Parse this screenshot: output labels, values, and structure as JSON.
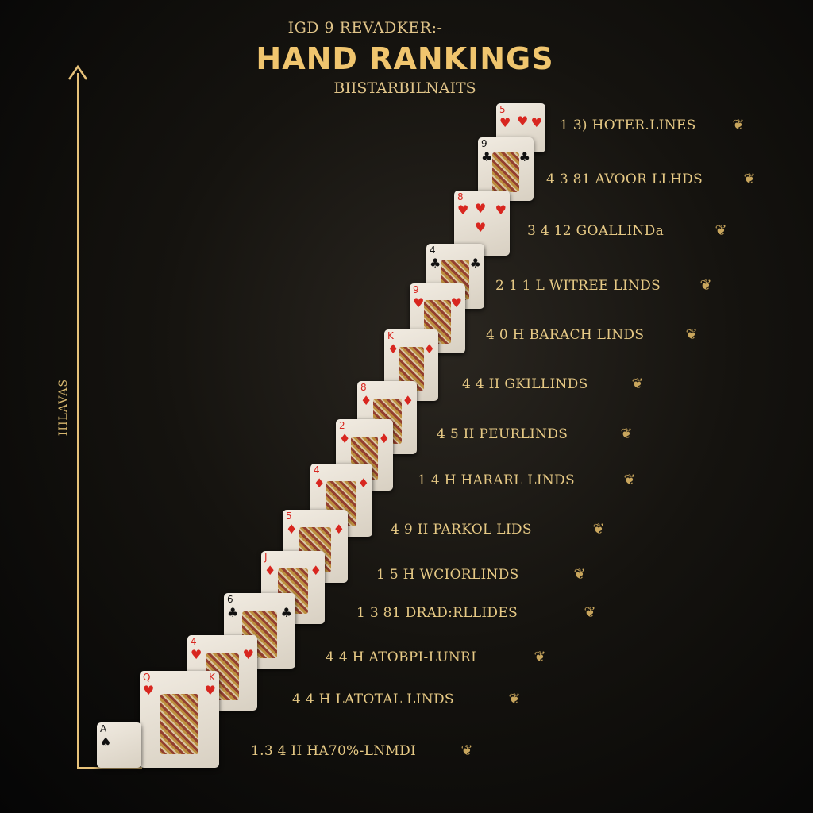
{
  "header": {
    "supertitle": "IGD 9 REVADKER:-",
    "title": "HAND RANKINGS",
    "subtitle": "BIISTARBILNAITS"
  },
  "axis": {
    "y_label": "IIILAVAS"
  },
  "colors": {
    "background": "#0a0908",
    "gold": "#f0c56e",
    "card": "#ece5da",
    "red": "#d8261f"
  },
  "rows": [
    {
      "label": "1  3)  HOTER.LINES",
      "icon": "ornate-emblem"
    },
    {
      "label": "4  3  81 AVOOR LLHDS",
      "icon": "ornate-emblem"
    },
    {
      "label": "3  4  12  GOALLINDa",
      "icon": "ornate-emblem"
    },
    {
      "label": "2  1  1  L WITREE LINDS",
      "icon": "ornate-emblem"
    },
    {
      "label": "4  0  H BARACH LINDS",
      "icon": "ornate-emblem"
    },
    {
      "label": "4  4  II  GKILLINDS",
      "icon": "ornate-emblem"
    },
    {
      "label": "4  5  II PEURLINDS",
      "icon": "ornate-emblem"
    },
    {
      "label": "1  4  H  HARARL LINDS",
      "icon": "ornate-emblem"
    },
    {
      "label": "4  9  II  PARKOL LIDS",
      "icon": "ornate-emblem"
    },
    {
      "label": "1  5  H  WCIORLINDS",
      "icon": "ornate-emblem"
    },
    {
      "label": "1  3  81 DRAD:RLLIDES",
      "icon": "ornate-emblem"
    },
    {
      "label": "4  4  H  ATOBPI-LUNRI",
      "icon": "ornate-emblem"
    },
    {
      "label": "4  4  H LATOTAL LINDS",
      "icon": "ornate-emblem"
    },
    {
      "label": "1.3  4  II  HA70%-LNMDI",
      "icon": "ornate-emblem"
    }
  ],
  "cards": [
    {
      "rank": "5",
      "suit": "♥",
      "color": "red"
    },
    {
      "rank": "9",
      "suit": "♣",
      "color": "black"
    },
    {
      "rank": "8",
      "suit": "♥",
      "color": "red"
    },
    {
      "rank": "4",
      "suit": "♣",
      "color": "black"
    },
    {
      "rank": "9",
      "suit": "♥",
      "color": "red"
    },
    {
      "rank": "K",
      "suit": "♦",
      "color": "red"
    },
    {
      "rank": "8",
      "suit": "♦",
      "color": "red"
    },
    {
      "rank": "2",
      "suit": "♦",
      "color": "red"
    },
    {
      "rank": "4",
      "suit": "♦",
      "color": "red"
    },
    {
      "rank": "5",
      "suit": "♦",
      "color": "red"
    },
    {
      "rank": "J",
      "suit": "♦",
      "color": "red"
    },
    {
      "rank": "6",
      "suit": "♣",
      "color": "black"
    },
    {
      "rank": "4",
      "suit": "♥",
      "color": "red"
    },
    {
      "rank": "Q",
      "suit": "♥",
      "color": "red",
      "rank2": "K"
    },
    {
      "rank": "A",
      "suit": "♠",
      "color": "black"
    }
  ]
}
